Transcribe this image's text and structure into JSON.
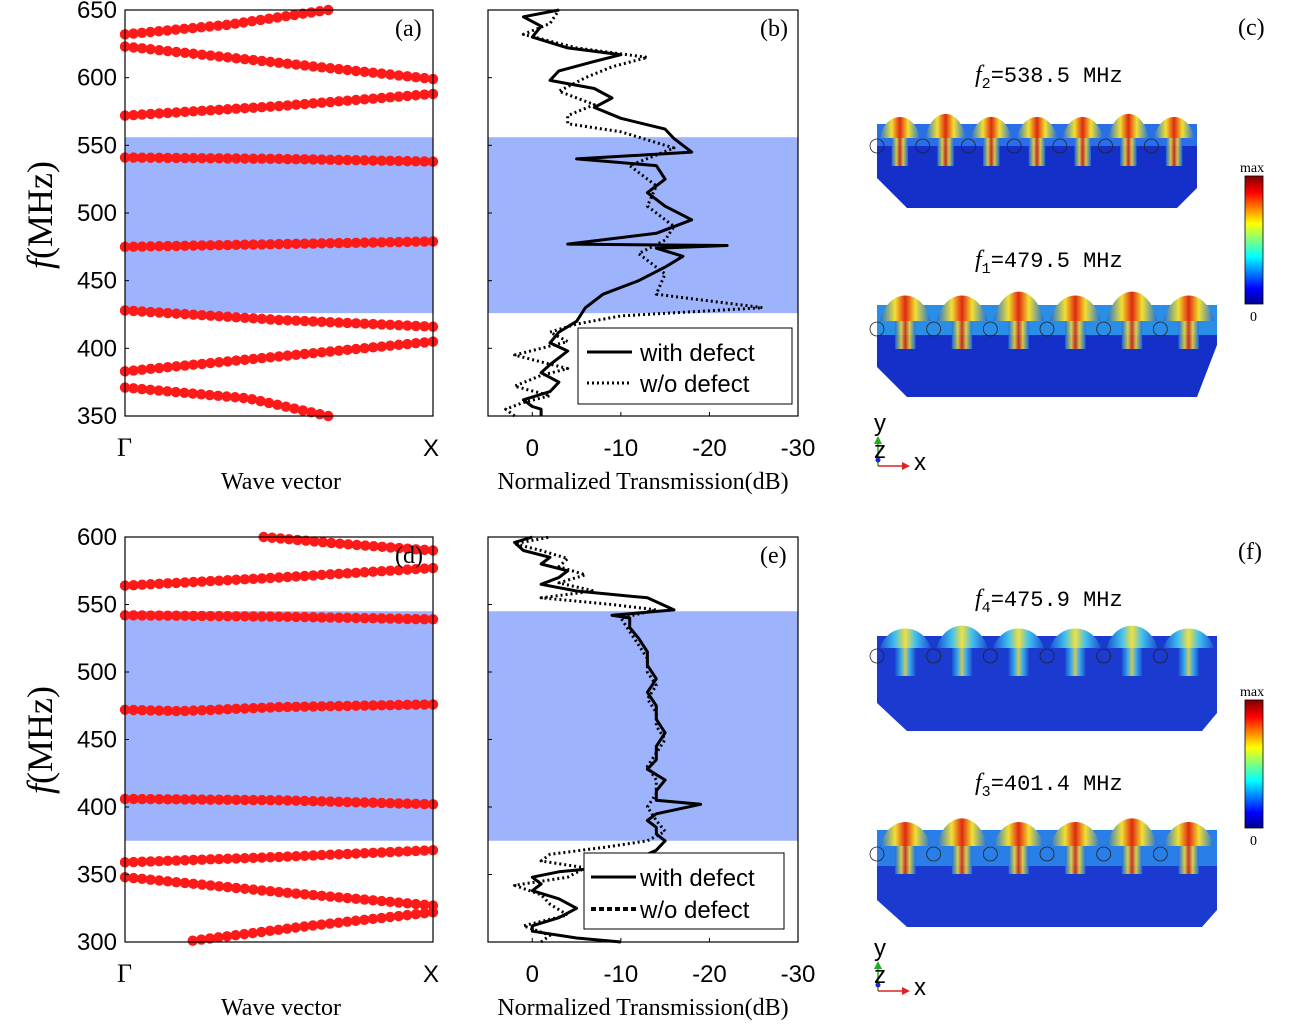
{
  "figure": {
    "panel_labels": [
      "(a)",
      "(b)",
      "(c)",
      "(d)",
      "(e)",
      "(f)"
    ],
    "ylabel_f": "f",
    "ylabel_unit": "(MHz)",
    "band_x_start": "Γ",
    "band_x_end": "X",
    "band_xlabel": "Wave vector",
    "trans_xlabel": "Normalized Transmission(dB)",
    "legend_with": "with defect",
    "legend_without": "w/o defect",
    "colorbar_max": "max",
    "colorbar_min": "0",
    "axis_y": "y",
    "axis_z": "z",
    "axis_x": "x",
    "bandgap_color": "#9db3fb",
    "dispersion_color": "#ff1a1a",
    "mode_labels": [
      {
        "sym": "f",
        "sub": "2",
        "text": "=538.5 MHz"
      },
      {
        "sym": "f",
        "sub": "1",
        "text": "=479.5 MHz"
      },
      {
        "sym": "f",
        "sub": "4",
        "text": "=475.9 MHz"
      },
      {
        "sym": "f",
        "sub": "3",
        "text": "=401.4 MHz"
      }
    ]
  },
  "chart_data": [
    {
      "panel": "(a)",
      "type": "scatter",
      "xlabel": "Wave vector",
      "ylabel": "f (MHz)",
      "xticks": [
        "Γ",
        "X"
      ],
      "ylim": [
        350,
        650
      ],
      "yticks": [
        350,
        400,
        450,
        500,
        550,
        600,
        650
      ],
      "band_gap": [
        426,
        556
      ],
      "branches": [
        [
          [
            0,
            632
          ],
          [
            0.33,
            639
          ],
          [
            0.66,
            650
          ]
        ],
        [
          [
            0,
            623
          ],
          [
            0.5,
            611
          ],
          [
            1,
            599
          ]
        ],
        [
          [
            0,
            572
          ],
          [
            0.5,
            579
          ],
          [
            1,
            588
          ]
        ],
        [
          [
            0,
            541
          ],
          [
            0.5,
            540
          ],
          [
            1,
            538
          ]
        ],
        [
          [
            0,
            475
          ],
          [
            0.5,
            477
          ],
          [
            1,
            479
          ]
        ],
        [
          [
            0,
            428
          ],
          [
            0.5,
            421
          ],
          [
            1,
            416
          ]
        ],
        [
          [
            0,
            383
          ],
          [
            0.5,
            394
          ],
          [
            1,
            405
          ]
        ],
        [
          [
            0,
            371
          ],
          [
            0.4,
            363
          ],
          [
            0.66,
            350
          ]
        ]
      ]
    },
    {
      "panel": "(b)",
      "type": "line",
      "xlabel": "Normalized Transmission(dB)",
      "xlim": [
        5,
        -30
      ],
      "xticks": [
        0,
        -10,
        -20,
        -30
      ],
      "ylim": [
        350,
        650
      ],
      "band_gap": [
        426,
        556
      ],
      "series": [
        {
          "name": "with defect",
          "style": "solid",
          "points": [
            [
              -1,
              350
            ],
            [
              -1,
              355
            ],
            [
              0,
              357
            ],
            [
              1,
              362
            ],
            [
              -2,
              368
            ],
            [
              -3,
              375
            ],
            [
              -1,
              382
            ],
            [
              -2,
              388
            ],
            [
              -3,
              393
            ],
            [
              -4,
              398
            ],
            [
              -2,
              404
            ],
            [
              -3,
              412
            ],
            [
              -5,
              420
            ],
            [
              -6,
              430
            ],
            [
              -8,
              440
            ],
            [
              -12,
              450
            ],
            [
              -15,
              460
            ],
            [
              -17,
              468
            ],
            [
              -14,
              474
            ],
            [
              -22,
              476
            ],
            [
              -4,
              477
            ],
            [
              -14,
              485
            ],
            [
              -18,
              495
            ],
            [
              -15,
              505
            ],
            [
              -13,
              515
            ],
            [
              -15,
              525
            ],
            [
              -14,
              535
            ],
            [
              -5,
              540
            ],
            [
              -18,
              545
            ],
            [
              -16,
              555
            ],
            [
              -15,
              562
            ],
            [
              -10,
              570
            ],
            [
              -7,
              578
            ],
            [
              -9,
              585
            ],
            [
              -7,
              592
            ],
            [
              -2,
              598
            ],
            [
              -3,
              605
            ],
            [
              -7,
              612
            ],
            [
              -10,
              617
            ],
            [
              -4,
              622
            ],
            [
              0,
              630
            ],
            [
              -1,
              638
            ],
            [
              1,
              645
            ],
            [
              -3,
              650
            ]
          ]
        },
        {
          "name": "w/o defect",
          "style": "dotted",
          "points": [
            [
              2,
              350
            ],
            [
              3,
              355
            ],
            [
              1,
              360
            ],
            [
              -2,
              365
            ],
            [
              2,
              372
            ],
            [
              -1,
              380
            ],
            [
              -4,
              385
            ],
            [
              -1,
              390
            ],
            [
              2,
              395
            ],
            [
              -1,
              400
            ],
            [
              -4,
              405
            ],
            [
              -2,
              412
            ],
            [
              -5,
              418
            ],
            [
              -10,
              424
            ],
            [
              -26,
              430
            ],
            [
              -14,
              440
            ],
            [
              -15,
              455
            ],
            [
              -12,
              470
            ],
            [
              -15,
              480
            ],
            [
              -16,
              490
            ],
            [
              -13,
              505
            ],
            [
              -14,
              520
            ],
            [
              -11,
              535
            ],
            [
              -16,
              548
            ],
            [
              -10,
              560
            ],
            [
              -4,
              566
            ],
            [
              -4,
              572
            ],
            [
              -7,
              580
            ],
            [
              -3,
              590
            ],
            [
              -6,
              600
            ],
            [
              -9,
              608
            ],
            [
              -13,
              615
            ],
            [
              -5,
              622
            ],
            [
              1,
              632
            ],
            [
              -2,
              640
            ],
            [
              -3,
              650
            ]
          ]
        }
      ]
    },
    {
      "panel": "(d)",
      "type": "scatter",
      "xlabel": "Wave vector",
      "ylabel": "f (MHz)",
      "xticks": [
        "Γ",
        "X"
      ],
      "ylim": [
        300,
        600
      ],
      "yticks": [
        300,
        350,
        400,
        450,
        500,
        550,
        600
      ],
      "band_gap": [
        375,
        545
      ],
      "branches": [
        [
          [
            0.45,
            600
          ],
          [
            0.7,
            595
          ],
          [
            1,
            590
          ]
        ],
        [
          [
            0,
            564
          ],
          [
            0.5,
            570
          ],
          [
            1,
            577
          ]
        ],
        [
          [
            0,
            542
          ],
          [
            0.5,
            541
          ],
          [
            1,
            539
          ]
        ],
        [
          [
            0,
            472
          ],
          [
            0.18,
            471
          ],
          [
            0.5,
            474
          ],
          [
            1,
            476
          ]
        ],
        [
          [
            0,
            406
          ],
          [
            0.5,
            405
          ],
          [
            1,
            402
          ]
        ],
        [
          [
            0,
            359
          ],
          [
            0.5,
            363
          ],
          [
            1,
            368
          ]
        ],
        [
          [
            0,
            348
          ],
          [
            0.5,
            337
          ],
          [
            1,
            327
          ]
        ],
        [
          [
            0.22,
            301
          ],
          [
            0.6,
            312
          ],
          [
            1,
            322
          ]
        ]
      ]
    },
    {
      "panel": "(e)",
      "type": "line",
      "xlabel": "Normalized Transmission(dB)",
      "xlim": [
        5,
        -30
      ],
      "xticks": [
        0,
        -10,
        -20,
        -30
      ],
      "ylim": [
        300,
        600
      ],
      "band_gap": [
        375,
        545
      ],
      "series": [
        {
          "name": "with defect",
          "style": "solid",
          "points": [
            [
              -10,
              300
            ],
            [
              -5,
              303
            ],
            [
              0,
              308
            ],
            [
              0,
              312
            ],
            [
              -3,
              318
            ],
            [
              -5,
              325
            ],
            [
              -3,
              332
            ],
            [
              0,
              338
            ],
            [
              -1,
              343
            ],
            [
              0,
              348
            ],
            [
              -3,
              352
            ],
            [
              -11,
              357
            ],
            [
              -12,
              362
            ],
            [
              -14,
              368
            ],
            [
              -15,
              375
            ],
            [
              -14,
              380
            ],
            [
              -14,
              385
            ],
            [
              -13,
              390
            ],
            [
              -14,
              395
            ],
            [
              -19,
              402
            ],
            [
              -14,
              405
            ],
            [
              -14,
              412
            ],
            [
              -15,
              420
            ],
            [
              -13,
              428
            ],
            [
              -14,
              435
            ],
            [
              -14,
              445
            ],
            [
              -15,
              455
            ],
            [
              -14,
              465
            ],
            [
              -14,
              475
            ],
            [
              -13,
              485
            ],
            [
              -14,
              495
            ],
            [
              -13,
              505
            ],
            [
              -13,
              515
            ],
            [
              -12,
              525
            ],
            [
              -11,
              533
            ],
            [
              -11,
              540
            ],
            [
              -9,
              542
            ],
            [
              -16,
              546
            ],
            [
              -13,
              555
            ],
            [
              -5,
              560
            ],
            [
              -1,
              565
            ],
            [
              -3,
              570
            ],
            [
              -4,
              575
            ],
            [
              -1,
              580
            ],
            [
              -2,
              585
            ],
            [
              1,
              590
            ],
            [
              2,
              596
            ],
            [
              0,
              600
            ]
          ]
        },
        {
          "name": "w/o defect",
          "style": "dotted",
          "points": [
            [
              -1,
              300
            ],
            [
              -2,
              305
            ],
            [
              1,
              312
            ],
            [
              -4,
              320
            ],
            [
              -2,
              328
            ],
            [
              -1,
              335
            ],
            [
              2,
              342
            ],
            [
              -4,
              348
            ],
            [
              -6,
              355
            ],
            [
              -1,
              360
            ],
            [
              -2,
              365
            ],
            [
              -8,
              370
            ],
            [
              -13,
              375
            ],
            [
              -15,
              382
            ],
            [
              -14,
              390
            ],
            [
              -13,
              400
            ],
            [
              -14,
              410
            ],
            [
              -14,
              420
            ],
            [
              -13,
              430
            ],
            [
              -14,
              440
            ],
            [
              -15,
              450
            ],
            [
              -14,
              460
            ],
            [
              -14,
              470
            ],
            [
              -13,
              480
            ],
            [
              -14,
              490
            ],
            [
              -13,
              500
            ],
            [
              -13,
              510
            ],
            [
              -12,
              520
            ],
            [
              -11,
              530
            ],
            [
              -10,
              540
            ],
            [
              -14,
              546
            ],
            [
              -9,
              550
            ],
            [
              -1,
              555
            ],
            [
              -7,
              560
            ],
            [
              -3,
              566
            ],
            [
              -6,
              572
            ],
            [
              -3,
              578
            ],
            [
              -4,
              584
            ],
            [
              -1,
              590
            ],
            [
              2,
              595
            ],
            [
              -2,
              600
            ]
          ]
        }
      ]
    }
  ]
}
